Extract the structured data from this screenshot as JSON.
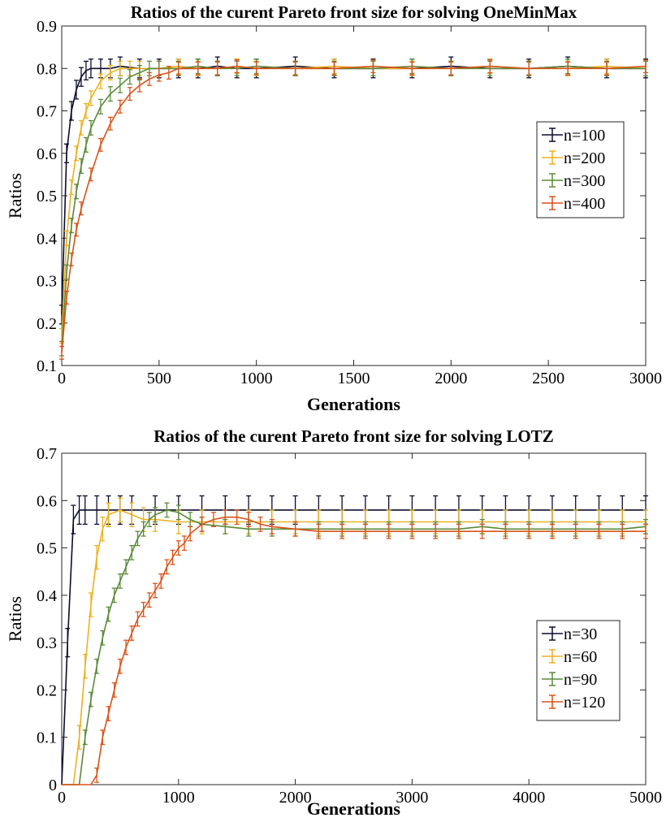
{
  "chart_data": [
    {
      "type": "line",
      "title": "Ratios of the curent Pareto front size for solving OneMinMax",
      "xlabel": "Generations",
      "ylabel": "Ratios",
      "xlim": [
        0,
        3000
      ],
      "ylim": [
        0.1,
        0.9
      ],
      "xticks": [
        0,
        500,
        1000,
        1500,
        2000,
        2500,
        3000
      ],
      "yticks": [
        0.1,
        0.2,
        0.3,
        0.4,
        0.5,
        0.6,
        0.7,
        0.8,
        0.9
      ],
      "legend_position": "right-middle",
      "error_bars": true,
      "series": [
        {
          "name": "n=100",
          "color": "#0b0b2e",
          "x": [
            0,
            25,
            50,
            75,
            100,
            125,
            150,
            200,
            250,
            300,
            400,
            500,
            600,
            700,
            800,
            900,
            1000,
            1200,
            1400,
            1600,
            1800,
            2000,
            2200,
            2400,
            2600,
            2800,
            3000
          ],
          "y": [
            0.22,
            0.6,
            0.7,
            0.75,
            0.78,
            0.795,
            0.8,
            0.8,
            0.8,
            0.805,
            0.8,
            0.8,
            0.8,
            0.8,
            0.805,
            0.8,
            0.8,
            0.805,
            0.8,
            0.8,
            0.8,
            0.805,
            0.8,
            0.8,
            0.805,
            0.8,
            0.8
          ],
          "err": 0.022
        },
        {
          "name": "n=200",
          "color": "#edb120",
          "x": [
            0,
            25,
            50,
            75,
            100,
            125,
            150,
            200,
            250,
            300,
            350,
            400,
            500,
            600,
            700,
            800,
            900,
            1000,
            1200,
            1400,
            1600,
            1800,
            2000,
            2200,
            2400,
            2600,
            2800,
            3000
          ],
          "y": [
            0.17,
            0.4,
            0.52,
            0.6,
            0.66,
            0.7,
            0.73,
            0.77,
            0.79,
            0.8,
            0.8,
            0.8,
            0.8,
            0.805,
            0.8,
            0.8,
            0.805,
            0.8,
            0.8,
            0.805,
            0.8,
            0.8,
            0.8,
            0.805,
            0.8,
            0.8,
            0.805,
            0.8
          ],
          "err": 0.017
        },
        {
          "name": "n=300",
          "color": "#5a8a3a",
          "x": [
            0,
            25,
            50,
            75,
            100,
            125,
            150,
            200,
            250,
            300,
            350,
            400,
            450,
            500,
            600,
            700,
            800,
            900,
            1000,
            1200,
            1400,
            1600,
            1800,
            2000,
            2200,
            2400,
            2600,
            2800,
            3000
          ],
          "y": [
            0.14,
            0.32,
            0.43,
            0.51,
            0.57,
            0.62,
            0.66,
            0.71,
            0.74,
            0.76,
            0.78,
            0.79,
            0.8,
            0.8,
            0.8,
            0.805,
            0.8,
            0.8,
            0.805,
            0.8,
            0.8,
            0.8,
            0.805,
            0.8,
            0.8,
            0.8,
            0.805,
            0.8,
            0.8
          ],
          "err": 0.017
        },
        {
          "name": "n=400",
          "color": "#d95319",
          "x": [
            0,
            25,
            50,
            75,
            100,
            150,
            200,
            250,
            300,
            350,
            400,
            450,
            500,
            550,
            600,
            700,
            800,
            900,
            1000,
            1200,
            1400,
            1600,
            1800,
            2000,
            2200,
            2400,
            2600,
            2800,
            3000
          ],
          "y": [
            0.13,
            0.26,
            0.35,
            0.42,
            0.47,
            0.55,
            0.62,
            0.67,
            0.71,
            0.74,
            0.76,
            0.775,
            0.785,
            0.79,
            0.8,
            0.8,
            0.8,
            0.805,
            0.8,
            0.8,
            0.8,
            0.805,
            0.8,
            0.8,
            0.805,
            0.8,
            0.8,
            0.8,
            0.805
          ],
          "err": 0.015
        }
      ]
    },
    {
      "type": "line",
      "title": "Ratios of the curent Pareto front size for solving LOTZ",
      "xlabel": "Generations",
      "ylabel": "Ratios",
      "xlim": [
        0,
        5000
      ],
      "ylim": [
        0,
        0.7
      ],
      "xticks": [
        0,
        1000,
        2000,
        3000,
        4000,
        5000
      ],
      "yticks": [
        0,
        0.1,
        0.2,
        0.3,
        0.4,
        0.5,
        0.6,
        0.7
      ],
      "legend_position": "bottom-right",
      "error_bars": true,
      "series": [
        {
          "name": "n=30",
          "color": "#0b0b2e",
          "x": [
            0,
            50,
            100,
            150,
            200,
            300,
            400,
            500,
            600,
            800,
            1000,
            1200,
            1400,
            1600,
            1800,
            2000,
            2200,
            2400,
            2600,
            2800,
            3000,
            3200,
            3400,
            3600,
            3800,
            4000,
            4200,
            4400,
            4600,
            4800,
            5000
          ],
          "y": [
            0,
            0.3,
            0.56,
            0.58,
            0.58,
            0.58,
            0.58,
            0.58,
            0.58,
            0.58,
            0.58,
            0.58,
            0.58,
            0.58,
            0.58,
            0.58,
            0.58,
            0.58,
            0.58,
            0.58,
            0.58,
            0.58,
            0.58,
            0.58,
            0.58,
            0.58,
            0.58,
            0.58,
            0.58,
            0.58,
            0.58
          ],
          "err": 0.03
        },
        {
          "name": "n=60",
          "color": "#edb120",
          "x": [
            0,
            100,
            150,
            200,
            250,
            300,
            350,
            400,
            500,
            600,
            700,
            800,
            1000,
            1200,
            1400,
            1600,
            1800,
            2000,
            2200,
            2400,
            2600,
            2800,
            3000,
            3200,
            3400,
            3600,
            3800,
            4000,
            4200,
            4400,
            4600,
            4800,
            5000
          ],
          "y": [
            0,
            0,
            0.1,
            0.25,
            0.38,
            0.48,
            0.54,
            0.57,
            0.58,
            0.57,
            0.56,
            0.56,
            0.555,
            0.555,
            0.555,
            0.555,
            0.555,
            0.555,
            0.555,
            0.555,
            0.555,
            0.555,
            0.555,
            0.555,
            0.555,
            0.555,
            0.555,
            0.555,
            0.555,
            0.555,
            0.555,
            0.555,
            0.555
          ],
          "err": 0.025
        },
        {
          "name": "n=90",
          "color": "#5a8a3a",
          "x": [
            0,
            150,
            200,
            250,
            300,
            350,
            400,
            450,
            500,
            550,
            600,
            650,
            700,
            750,
            800,
            900,
            1000,
            1100,
            1200,
            1400,
            1600,
            1800,
            2000,
            2200,
            2400,
            2600,
            2800,
            3000,
            3200,
            3400,
            3600,
            3800,
            4000,
            4200,
            4400,
            4600,
            4800,
            5000
          ],
          "y": [
            0,
            0,
            0.1,
            0.18,
            0.25,
            0.31,
            0.36,
            0.4,
            0.43,
            0.46,
            0.49,
            0.52,
            0.54,
            0.56,
            0.57,
            0.58,
            0.575,
            0.56,
            0.55,
            0.545,
            0.54,
            0.54,
            0.54,
            0.54,
            0.54,
            0.54,
            0.54,
            0.54,
            0.54,
            0.54,
            0.545,
            0.54,
            0.54,
            0.54,
            0.54,
            0.54,
            0.54,
            0.545
          ],
          "err": 0.015
        },
        {
          "name": "n=120",
          "color": "#d95319",
          "x": [
            0,
            250,
            300,
            350,
            400,
            450,
            500,
            550,
            600,
            650,
            700,
            750,
            800,
            850,
            900,
            950,
            1000,
            1050,
            1100,
            1200,
            1300,
            1400,
            1500,
            1600,
            1700,
            1800,
            2000,
            2200,
            2400,
            2600,
            2800,
            3000,
            3200,
            3400,
            3600,
            3800,
            4000,
            4200,
            4400,
            4600,
            4800,
            5000
          ],
          "y": [
            0,
            0,
            0.02,
            0.1,
            0.15,
            0.2,
            0.25,
            0.29,
            0.32,
            0.35,
            0.37,
            0.39,
            0.41,
            0.43,
            0.46,
            0.48,
            0.5,
            0.51,
            0.53,
            0.55,
            0.56,
            0.565,
            0.565,
            0.56,
            0.55,
            0.545,
            0.54,
            0.535,
            0.535,
            0.535,
            0.535,
            0.535,
            0.535,
            0.535,
            0.535,
            0.535,
            0.535,
            0.535,
            0.535,
            0.535,
            0.535,
            0.535
          ],
          "err": 0.015
        }
      ]
    }
  ]
}
